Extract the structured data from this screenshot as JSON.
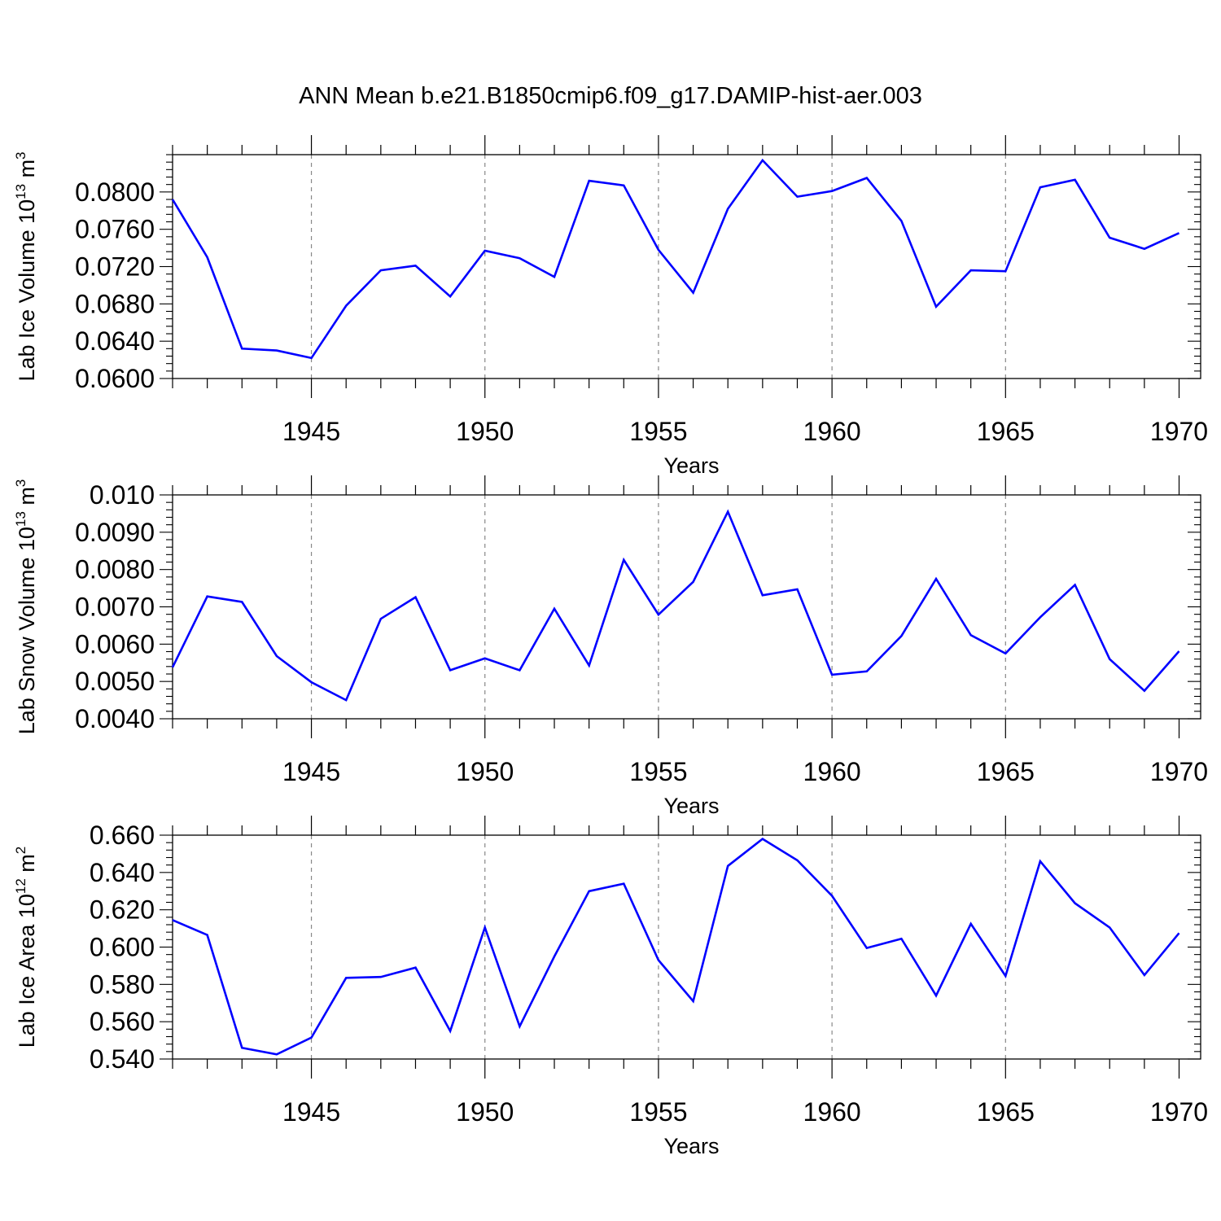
{
  "title": "ANN Mean b.e21.B1850cmip6.f09_g17.DAMIP-hist-aer.003",
  "chart_data": [
    {
      "type": "line",
      "ylabel": "Lab Ice Volume 10",
      "ylabel_exp": "13",
      "ylabel_unit": "m",
      "ylabel_unit_exp": "3",
      "xlabel": "Years",
      "xlim": [
        1941,
        1970
      ],
      "ylim": [
        0.06,
        0.084
      ],
      "xticks": [
        1945,
        1950,
        1955,
        1960,
        1965,
        1970
      ],
      "yticks": [
        0.06,
        0.064,
        0.068,
        0.072,
        0.076,
        0.08
      ],
      "ytick_labels": [
        "0.0600",
        "0.0640",
        "0.0680",
        "0.0720",
        "0.0760",
        "0.0800"
      ],
      "grid": "vertical dashed at major x ticks",
      "color": "#0000ff",
      "x": [
        1941,
        1942,
        1943,
        1944,
        1945,
        1946,
        1947,
        1948,
        1949,
        1950,
        1951,
        1952,
        1953,
        1954,
        1955,
        1956,
        1957,
        1958,
        1959,
        1960,
        1961,
        1962,
        1963,
        1964,
        1965,
        1966,
        1967,
        1968,
        1969,
        1970
      ],
      "y": [
        0.0792,
        0.073,
        0.0632,
        0.063,
        0.0622,
        0.0678,
        0.0716,
        0.0721,
        0.0688,
        0.0737,
        0.0729,
        0.0709,
        0.0812,
        0.0807,
        0.0738,
        0.0692,
        0.0782,
        0.0834,
        0.0795,
        0.0801,
        0.0815,
        0.0769,
        0.0677,
        0.0716,
        0.0715,
        0.0805,
        0.0813,
        0.0751,
        0.0739,
        0.0756
      ]
    },
    {
      "type": "line",
      "ylabel": "Lab Snow Volume 10",
      "ylabel_exp": "13",
      "ylabel_unit": "m",
      "ylabel_unit_exp": "3",
      "xlabel": "Years",
      "xlim": [
        1941,
        1970
      ],
      "ylim": [
        0.004,
        0.01
      ],
      "xticks": [
        1945,
        1950,
        1955,
        1960,
        1965,
        1970
      ],
      "yticks": [
        0.004,
        0.005,
        0.006,
        0.007,
        0.008,
        0.009,
        0.01
      ],
      "ytick_labels": [
        "0.0040",
        "0.0050",
        "0.0060",
        "0.0070",
        "0.0080",
        "0.0090",
        "0.010"
      ],
      "grid": "vertical dashed at major x ticks",
      "color": "#0000ff",
      "x": [
        1941,
        1942,
        1943,
        1944,
        1945,
        1946,
        1947,
        1948,
        1949,
        1950,
        1951,
        1952,
        1953,
        1954,
        1955,
        1956,
        1957,
        1958,
        1959,
        1960,
        1961,
        1962,
        1963,
        1964,
        1965,
        1966,
        1967,
        1968,
        1969,
        1970
      ],
      "y": [
        0.00538,
        0.00728,
        0.00713,
        0.00568,
        0.00498,
        0.0045,
        0.00668,
        0.00726,
        0.0053,
        0.00562,
        0.0053,
        0.00695,
        0.00543,
        0.00826,
        0.00679,
        0.00767,
        0.00955,
        0.00731,
        0.00747,
        0.00518,
        0.00527,
        0.00622,
        0.00775,
        0.00624,
        0.00575,
        0.00672,
        0.00759,
        0.0056,
        0.00475,
        0.00581
      ]
    },
    {
      "type": "line",
      "ylabel": "Lab Ice Area 10",
      "ylabel_exp": "12",
      "ylabel_unit": "m",
      "ylabel_unit_exp": "2",
      "xlabel": "Years",
      "xlim": [
        1941,
        1970
      ],
      "ylim": [
        0.54,
        0.66
      ],
      "xticks": [
        1945,
        1950,
        1955,
        1960,
        1965,
        1970
      ],
      "yticks": [
        0.54,
        0.56,
        0.58,
        0.6,
        0.62,
        0.64,
        0.66
      ],
      "ytick_labels": [
        "0.540",
        "0.560",
        "0.580",
        "0.600",
        "0.620",
        "0.640",
        "0.660"
      ],
      "grid": "vertical dashed at major x ticks",
      "color": "#0000ff",
      "x": [
        1941,
        1942,
        1943,
        1944,
        1945,
        1946,
        1947,
        1948,
        1949,
        1950,
        1951,
        1952,
        1953,
        1954,
        1955,
        1956,
        1957,
        1958,
        1959,
        1960,
        1961,
        1962,
        1963,
        1964,
        1965,
        1966,
        1967,
        1968,
        1969,
        1970
      ],
      "y": [
        0.6145,
        0.6065,
        0.546,
        0.5425,
        0.5515,
        0.5835,
        0.584,
        0.589,
        0.555,
        0.6105,
        0.5575,
        0.595,
        0.63,
        0.634,
        0.593,
        0.571,
        0.6435,
        0.658,
        0.6465,
        0.6275,
        0.5995,
        0.6045,
        0.574,
        0.6125,
        0.5845,
        0.646,
        0.6235,
        0.6105,
        0.585,
        0.6075
      ]
    }
  ]
}
